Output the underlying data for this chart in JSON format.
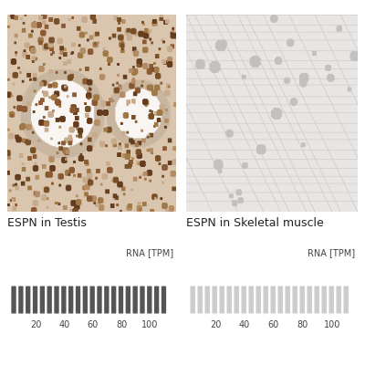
{
  "title_left": "ESPN in Testis",
  "title_right": "ESPN in Skeletal muscle",
  "rna_label": "RNA [TPM]",
  "tick_labels": [
    20,
    40,
    60,
    80,
    100
  ],
  "n_bars": 22,
  "bar_color_left": "#555555",
  "bar_color_right": "#cccccc",
  "bar_width": 0.72,
  "bar_height": 1.0,
  "background_color": "#ffffff",
  "title_fontsize": 9,
  "tick_fontsize": 7,
  "rna_fontsize": 7
}
